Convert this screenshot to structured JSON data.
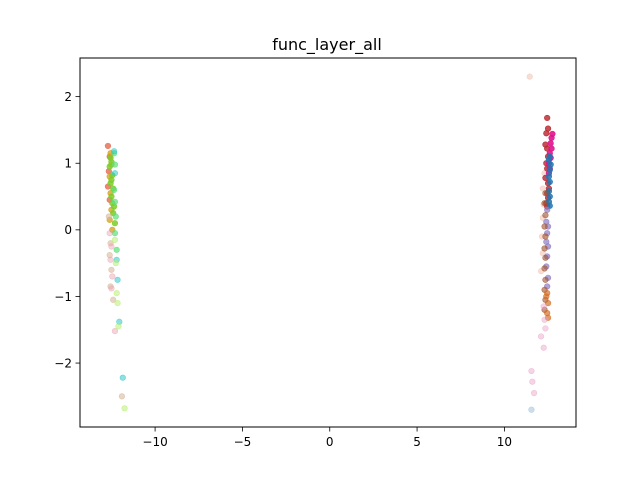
{
  "chart_data": {
    "type": "scatter",
    "title": "func_layer_all",
    "xlabel": "",
    "ylabel": "",
    "xlim": [
      -14.3,
      14.1
    ],
    "ylim": [
      -2.96,
      2.58
    ],
    "xticks": [
      -10,
      -5,
      0,
      5,
      10
    ],
    "yticks": [
      -2,
      -1,
      0,
      1,
      2
    ],
    "xtick_labels": [
      "−10",
      "−5",
      "0",
      "5",
      "10"
    ],
    "ytick_labels": [
      "−2",
      "−1",
      "0",
      "1",
      "2"
    ],
    "grid": false,
    "series": [
      {
        "color": "#e8735a",
        "opacity": 0.85,
        "points": [
          [
            -12.7,
            1.26
          ],
          [
            -12.6,
            1.1
          ],
          [
            -12.65,
            0.88
          ],
          [
            -12.7,
            0.65
          ],
          [
            -12.6,
            0.45
          ]
        ]
      },
      {
        "color": "#d4a017",
        "opacity": 0.75,
        "points": [
          [
            -12.55,
            1.15
          ],
          [
            -12.5,
            0.98
          ],
          [
            -12.6,
            0.8
          ],
          [
            -12.55,
            0.55
          ],
          [
            -12.5,
            0.3
          ],
          [
            -12.6,
            0.15
          ],
          [
            -12.45,
            0.0
          ]
        ]
      },
      {
        "color": "#7ccd2a",
        "opacity": 0.85,
        "points": [
          [
            -12.55,
            1.08
          ],
          [
            -12.5,
            1.02
          ],
          [
            -12.6,
            0.95
          ],
          [
            -12.45,
            0.82
          ],
          [
            -12.5,
            0.75
          ],
          [
            -12.55,
            0.7
          ],
          [
            -12.4,
            0.62
          ],
          [
            -12.5,
            0.5
          ],
          [
            -12.45,
            0.4
          ],
          [
            -12.35,
            0.35
          ],
          [
            -12.4,
            0.25
          ],
          [
            -12.3,
            0.1
          ]
        ]
      },
      {
        "color": "#5ee07a",
        "opacity": 0.7,
        "points": [
          [
            -12.35,
            1.15
          ],
          [
            -12.3,
            0.98
          ],
          [
            -12.35,
            0.6
          ],
          [
            -12.3,
            0.42
          ],
          [
            -12.25,
            0.2
          ],
          [
            -12.3,
            -0.05
          ],
          [
            -12.2,
            -0.3
          ]
        ]
      },
      {
        "color": "#32c8c8",
        "opacity": 0.55,
        "points": [
          [
            -12.35,
            1.18
          ],
          [
            -12.3,
            0.85
          ],
          [
            -12.2,
            -0.45
          ],
          [
            -12.15,
            -0.75
          ],
          [
            -12.05,
            -1.38
          ],
          [
            -11.85,
            -2.22
          ]
        ]
      },
      {
        "color": "#d9b99b",
        "opacity": 0.6,
        "points": [
          [
            -12.65,
            0.2
          ],
          [
            -12.55,
            -0.2
          ],
          [
            -12.6,
            -0.38
          ],
          [
            -12.5,
            -0.6
          ],
          [
            -12.55,
            -0.85
          ],
          [
            -12.4,
            -1.05
          ],
          [
            -11.9,
            -2.5
          ]
        ]
      },
      {
        "color": "#e8a0b0",
        "opacity": 0.45,
        "points": [
          [
            -12.6,
            -0.05
          ],
          [
            -12.5,
            -0.25
          ],
          [
            -12.55,
            -0.45
          ],
          [
            -12.45,
            -0.7
          ],
          [
            -12.5,
            -0.88
          ],
          [
            -12.3,
            -1.52
          ]
        ]
      },
      {
        "color": "#b8f070",
        "opacity": 0.55,
        "points": [
          [
            -12.3,
            -0.15
          ],
          [
            -12.25,
            -0.5
          ],
          [
            -12.2,
            -0.95
          ],
          [
            -12.15,
            -1.1
          ],
          [
            -12.1,
            -1.45
          ],
          [
            -11.75,
            -2.68
          ]
        ]
      },
      {
        "color": "#f3cfc0",
        "opacity": 0.7,
        "points": [
          [
            11.45,
            2.3
          ],
          [
            12.3,
            0.85
          ],
          [
            12.2,
            0.62
          ],
          [
            12.25,
            0.38
          ],
          [
            12.2,
            0.18
          ],
          [
            12.15,
            -0.1
          ],
          [
            12.2,
            -0.35
          ],
          [
            12.1,
            -0.62
          ]
        ]
      },
      {
        "color": "#b8242c",
        "opacity": 0.8,
        "points": [
          [
            12.45,
            1.68
          ],
          [
            12.5,
            1.52
          ],
          [
            12.4,
            1.45
          ],
          [
            12.35,
            1.28
          ],
          [
            12.45,
            1.22
          ],
          [
            12.5,
            1.1
          ],
          [
            12.4,
            1.0
          ],
          [
            12.45,
            0.92
          ],
          [
            12.35,
            0.78
          ],
          [
            12.5,
            0.7
          ],
          [
            12.55,
            0.62
          ],
          [
            12.45,
            0.55
          ],
          [
            12.5,
            0.48
          ],
          [
            12.4,
            0.4
          ],
          [
            12.45,
            0.35
          ]
        ]
      },
      {
        "color": "#e0148c",
        "opacity": 0.9,
        "points": [
          [
            12.75,
            1.44
          ],
          [
            12.7,
            1.38
          ],
          [
            12.65,
            1.3
          ],
          [
            12.7,
            1.22
          ],
          [
            12.6,
            1.15
          ],
          [
            12.65,
            1.08
          ],
          [
            12.55,
            1.0
          ],
          [
            12.6,
            0.92
          ],
          [
            12.55,
            0.85
          ]
        ]
      },
      {
        "color": "#1f77b4",
        "opacity": 0.85,
        "points": [
          [
            12.6,
            1.1
          ],
          [
            12.55,
            1.05
          ],
          [
            12.65,
            0.98
          ],
          [
            12.6,
            0.9
          ],
          [
            12.55,
            0.8
          ],
          [
            12.6,
            0.72
          ],
          [
            12.55,
            0.58
          ],
          [
            12.6,
            0.5
          ],
          [
            12.55,
            0.42
          ],
          [
            12.6,
            0.36
          ]
        ]
      },
      {
        "color": "#8e7cc3",
        "opacity": 0.7,
        "points": [
          [
            12.45,
            0.3
          ],
          [
            12.4,
            0.12
          ],
          [
            12.5,
            0.05
          ],
          [
            12.45,
            -0.05
          ],
          [
            12.4,
            -0.18
          ],
          [
            12.5,
            -0.25
          ],
          [
            12.45,
            -0.4
          ],
          [
            12.4,
            -0.55
          ],
          [
            12.5,
            -0.72
          ],
          [
            12.45,
            -0.85
          ]
        ]
      },
      {
        "color": "#a0522d",
        "opacity": 0.6,
        "points": [
          [
            12.35,
            0.55
          ],
          [
            12.3,
            0.4
          ],
          [
            12.35,
            0.22
          ],
          [
            12.3,
            0.05
          ],
          [
            12.35,
            -0.1
          ],
          [
            12.3,
            -0.28
          ],
          [
            12.35,
            -0.42
          ],
          [
            12.3,
            -0.58
          ],
          [
            12.35,
            -0.75
          ],
          [
            12.3,
            -0.9
          ],
          [
            12.35,
            -1.05
          ],
          [
            12.3,
            -1.2
          ]
        ]
      },
      {
        "color": "#d2691e",
        "opacity": 0.65,
        "points": [
          [
            12.45,
            -0.95
          ],
          [
            12.5,
            -1.1
          ],
          [
            12.45,
            -1.25
          ],
          [
            12.5,
            -1.32
          ],
          [
            12.4,
            -1.0
          ]
        ]
      },
      {
        "color": "#e8a0c8",
        "opacity": 0.45,
        "points": [
          [
            12.25,
            -1.15
          ],
          [
            12.3,
            -1.35
          ],
          [
            12.35,
            -1.48
          ],
          [
            12.1,
            -1.6
          ],
          [
            12.25,
            -1.77
          ],
          [
            11.55,
            -2.12
          ],
          [
            11.6,
            -2.28
          ],
          [
            11.7,
            -2.45
          ]
        ]
      },
      {
        "color": "#8fb6d8",
        "opacity": 0.45,
        "points": [
          [
            11.55,
            -2.7
          ]
        ]
      }
    ]
  }
}
